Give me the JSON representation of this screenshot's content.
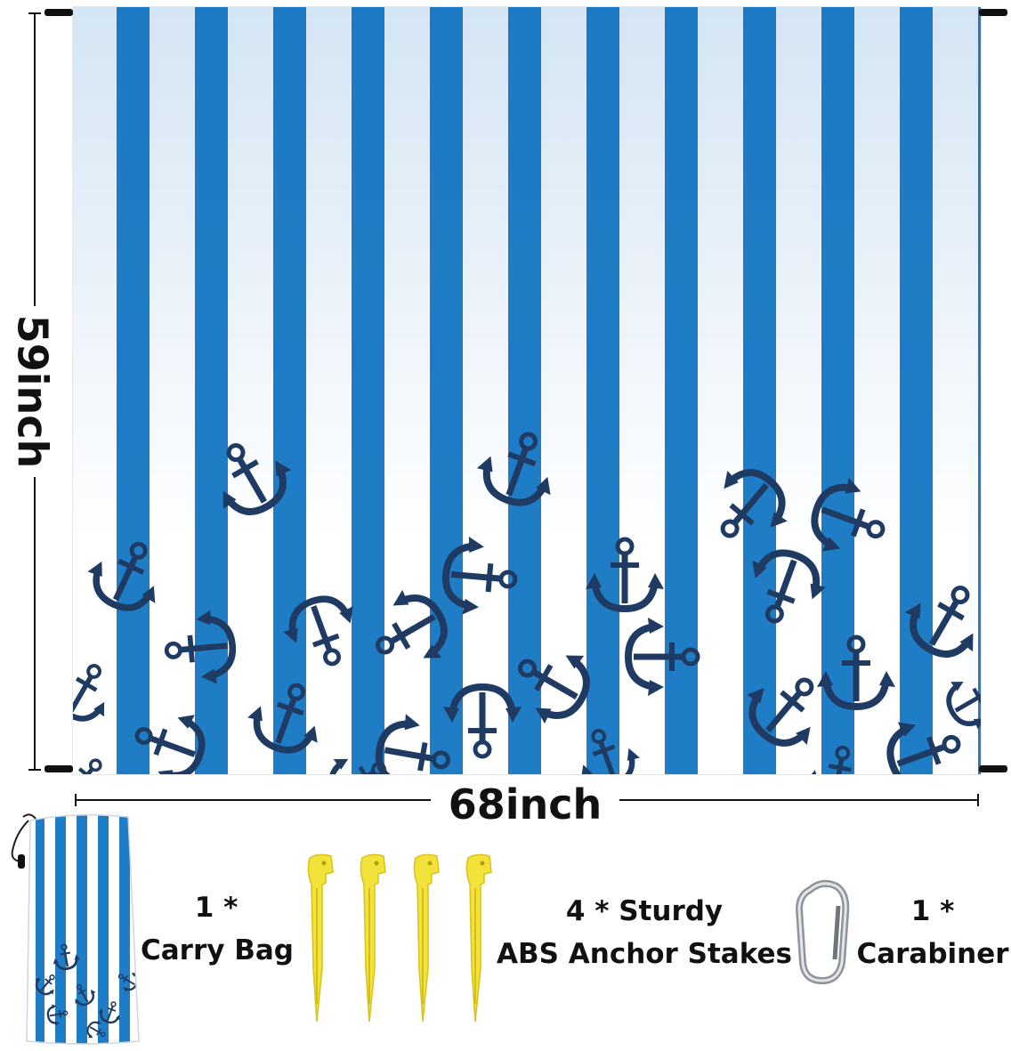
{
  "dimensions": {
    "height_label": "59inch",
    "width_label": "68inch"
  },
  "colors": {
    "stripe_blue": "#1f7dc6",
    "anchor_navy": "#1f3b63",
    "stake_yellow": "#f2e23a"
  },
  "accessories": [
    {
      "count": "1 *",
      "name": "Carry Bag"
    },
    {
      "count": "4 * Sturdy",
      "name": "ABS Anchor Stakes"
    },
    {
      "count": "1 *",
      "name": "Carabiner"
    }
  ],
  "icons": [
    "anchor-icon",
    "carry-bag-icon",
    "ground-stake-icon",
    "carabiner-icon"
  ]
}
